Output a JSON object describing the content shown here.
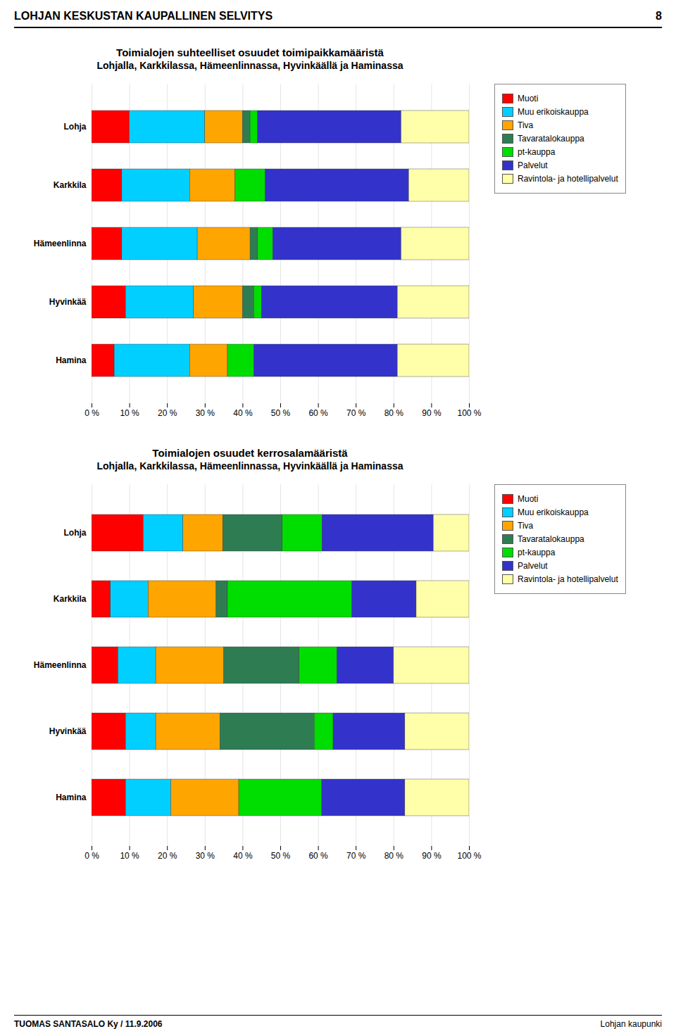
{
  "chart_data": [
    {
      "type": "bar",
      "orientation": "horizontal",
      "stacked": true,
      "title": "Toimialojen suhteelliset osuudet toimipaikkamääristä",
      "subtitle": "Lohjalla, Karkkilassa, Hämeenlinnassa, Hyvinkäällä ja Haminassa",
      "annotations": [
        "LOHJAN KESKUSTAN KAUPALLINEN SELVITYS",
        "8"
      ],
      "categories": [
        "Lohja",
        "Karkkila",
        "Hämeenlinna",
        "Hyvinkää",
        "Hamina"
      ],
      "series": [
        {
          "name": "Muoti",
          "color": "#FF0000",
          "values": [
            10,
            8,
            8,
            9,
            6
          ]
        },
        {
          "name": "Muu erikoiskauppa",
          "color": "#00CFFF",
          "values": [
            20,
            18,
            20,
            18,
            20
          ]
        },
        {
          "name": "Tiva",
          "color": "#FFA500",
          "values": [
            10,
            12,
            14,
            13,
            10
          ]
        },
        {
          "name": "Tavaratalokauppa",
          "color": "#2E7D52",
          "values": [
            2,
            0,
            2,
            3,
            0
          ]
        },
        {
          "name": "pt-kauppa",
          "color": "#00DD00",
          "values": [
            2,
            8,
            4,
            2,
            7
          ]
        },
        {
          "name": "Palvelut",
          "color": "#3333CC",
          "values": [
            38,
            38,
            34,
            36,
            38
          ]
        },
        {
          "name": "Ravintola- ja hotellipalvelut",
          "color": "#FFFFAA",
          "values": [
            18,
            16,
            18,
            19,
            19
          ]
        }
      ],
      "xlim": [
        0,
        100
      ],
      "xticks": [
        {
          "value": 0,
          "label": "0 %"
        },
        {
          "value": 10,
          "label": "10 %"
        },
        {
          "value": 20,
          "label": "20 %"
        },
        {
          "value": 30,
          "label": "30 %"
        },
        {
          "value": 40,
          "label": "40 %"
        },
        {
          "value": 50,
          "label": "50 %"
        },
        {
          "value": 60,
          "label": "60 %"
        },
        {
          "value": 70,
          "label": "70 %"
        },
        {
          "value": 80,
          "label": "80 %"
        },
        {
          "value": 90,
          "label": "90 %"
        },
        {
          "value": 100,
          "label": "100 %"
        }
      ],
      "grid": true,
      "legend": "right"
    },
    {
      "type": "bar",
      "orientation": "horizontal",
      "stacked": true,
      "title": "Toimialojen osuudet kerrosalamääristä",
      "subtitle": "Lohjalla, Karkkilassa, Hämeenlinnassa, Hyvinkäällä ja Haminassa",
      "annotations": [
        "TUOMAS SANTASALO Ky / 11.9.2006",
        "Lohjan kaupunki"
      ],
      "categories": [
        "Lohja",
        "Karkkila",
        "Hämeenlinna",
        "Hyvinkää",
        "Hamina"
      ],
      "series": [
        {
          "name": "Muoti",
          "color": "#FF0000",
          "values": [
            13.68421052631579,
            5,
            7,
            9,
            9
          ]
        },
        {
          "name": "Muu erikoiskauppa",
          "color": "#00CFFF",
          "values": [
            10.526315789473685,
            10,
            10,
            8,
            12
          ]
        },
        {
          "name": "Tiva",
          "color": "#FFA500",
          "values": [
            10.526315789473685,
            18,
            18,
            17,
            18
          ]
        },
        {
          "name": "Tavaratalokauppa",
          "color": "#2E7D52",
          "values": [
            15.789473684210526,
            3,
            20,
            25,
            0
          ]
        },
        {
          "name": "pt-kauppa",
          "color": "#00DD00",
          "values": [
            10.526315789473685,
            33,
            10,
            5,
            22
          ]
        },
        {
          "name": "Palvelut",
          "color": "#3333CC",
          "values": [
            29.473684210526315,
            17,
            15,
            19,
            22
          ]
        },
        {
          "name": "Ravintola- ja hotellipalvelut",
          "color": "#FFFFAA",
          "values": [
            9.473684210526315,
            14,
            20,
            17,
            17
          ]
        }
      ],
      "xlim": [
        0,
        100
      ],
      "xticks": [
        {
          "value": 0,
          "label": "0 %"
        },
        {
          "value": 10,
          "label": "10 %"
        },
        {
          "value": 20,
          "label": "20 %"
        },
        {
          "value": 30,
          "label": "30 %"
        },
        {
          "value": 40,
          "label": "40 %"
        },
        {
          "value": 50,
          "label": "50 %"
        },
        {
          "value": 60,
          "label": "60 %"
        },
        {
          "value": 70,
          "label": "70 %"
        },
        {
          "value": 80,
          "label": "80 %"
        },
        {
          "value": 90,
          "label": "90 %"
        },
        {
          "value": 100,
          "label": "100 %"
        }
      ],
      "grid": true,
      "legend": "right"
    }
  ]
}
